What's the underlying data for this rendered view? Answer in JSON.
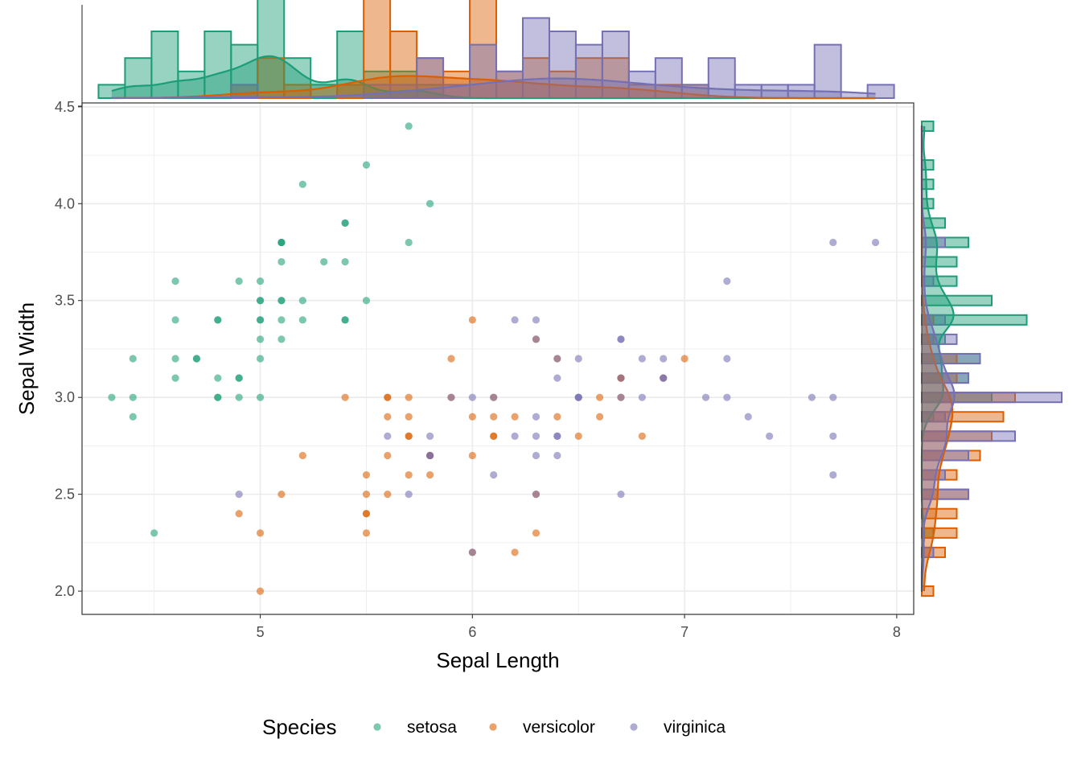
{
  "chart_data": {
    "type": "scatter",
    "xlabel": "Sepal Length",
    "ylabel": "Sepal Width",
    "xlim": [
      4.16,
      8.08
    ],
    "ylim": [
      1.88,
      4.52
    ],
    "x_ticks": [
      5,
      6,
      7,
      8
    ],
    "y_ticks": [
      2.0,
      2.5,
      3.0,
      3.5,
      4.0,
      4.5
    ],
    "x_tick_labels": [
      "5",
      "6",
      "7",
      "8"
    ],
    "y_tick_labels": [
      "2.0",
      "2.5",
      "3.0",
      "3.5",
      "4.0",
      "4.5"
    ],
    "grid": true,
    "marginals": "histogram with density curve on top (Sepal Length) and right (Sepal Width)",
    "legend": {
      "title": "Species",
      "position": "bottom",
      "entries": [
        "setosa",
        "versicolor",
        "virginica"
      ]
    },
    "colors": {
      "setosa": "#1b9e77",
      "versicolor": "#d95f02",
      "virginica": "#7570b3"
    },
    "series": [
      {
        "name": "setosa",
        "x": [
          5.1,
          4.9,
          4.7,
          4.6,
          5.0,
          5.4,
          4.6,
          5.0,
          4.4,
          4.9,
          5.4,
          4.8,
          4.8,
          4.3,
          5.8,
          5.7,
          5.4,
          5.1,
          5.7,
          5.1,
          5.4,
          5.1,
          4.6,
          5.1,
          4.8,
          5.0,
          5.0,
          5.2,
          5.2,
          4.7,
          4.8,
          5.4,
          5.2,
          5.5,
          4.9,
          5.0,
          5.5,
          4.9,
          4.4,
          5.1,
          5.0,
          4.5,
          4.4,
          5.0,
          5.1,
          4.8,
          5.1,
          4.6,
          5.3,
          5.0
        ],
        "y": [
          3.5,
          3.0,
          3.2,
          3.1,
          3.6,
          3.9,
          3.4,
          3.4,
          2.9,
          3.1,
          3.7,
          3.4,
          3.0,
          3.0,
          4.0,
          4.4,
          3.9,
          3.5,
          3.8,
          3.8,
          3.4,
          3.7,
          3.6,
          3.3,
          3.4,
          3.0,
          3.4,
          3.5,
          3.4,
          3.2,
          3.1,
          3.4,
          4.1,
          4.2,
          3.1,
          3.2,
          3.5,
          3.6,
          3.0,
          3.4,
          3.5,
          2.3,
          3.2,
          3.5,
          3.8,
          3.0,
          3.8,
          3.2,
          3.7,
          3.3
        ]
      },
      {
        "name": "versicolor",
        "x": [
          7.0,
          6.4,
          6.9,
          5.5,
          6.5,
          5.7,
          6.3,
          4.9,
          6.6,
          5.2,
          5.0,
          5.9,
          6.0,
          6.1,
          5.6,
          6.7,
          5.6,
          5.8,
          6.2,
          5.6,
          5.9,
          6.1,
          6.3,
          6.1,
          6.4,
          6.6,
          6.8,
          6.7,
          6.0,
          5.7,
          5.5,
          5.5,
          5.8,
          6.0,
          5.4,
          6.0,
          6.7,
          6.3,
          5.6,
          5.5,
          5.5,
          6.1,
          5.8,
          5.0,
          5.6,
          5.7,
          5.7,
          6.2,
          5.1,
          5.7
        ],
        "y": [
          3.2,
          3.2,
          3.1,
          2.3,
          2.8,
          2.8,
          3.3,
          2.4,
          2.9,
          2.7,
          2.0,
          3.0,
          2.2,
          2.9,
          2.9,
          3.1,
          3.0,
          2.7,
          2.2,
          2.5,
          3.2,
          2.8,
          2.5,
          2.8,
          2.9,
          3.0,
          2.8,
          3.0,
          2.9,
          2.6,
          2.4,
          2.4,
          2.7,
          2.7,
          3.0,
          3.4,
          3.1,
          2.3,
          3.0,
          2.5,
          2.6,
          3.0,
          2.6,
          2.3,
          2.7,
          3.0,
          2.9,
          2.9,
          2.5,
          2.8
        ]
      },
      {
        "name": "virginica",
        "x": [
          6.3,
          5.8,
          7.1,
          6.3,
          6.5,
          7.6,
          4.9,
          7.3,
          6.7,
          7.2,
          6.5,
          6.4,
          6.8,
          5.7,
          5.8,
          6.4,
          6.5,
          7.7,
          7.7,
          6.0,
          6.9,
          5.6,
          7.7,
          6.3,
          6.7,
          7.2,
          6.2,
          6.1,
          6.4,
          7.2,
          7.4,
          7.9,
          6.4,
          6.3,
          6.1,
          7.7,
          6.3,
          6.4,
          6.0,
          6.9,
          6.7,
          6.9,
          5.8,
          6.8,
          6.7,
          6.7,
          6.3,
          6.5,
          6.2,
          5.9
        ],
        "y": [
          3.3,
          2.7,
          3.0,
          2.9,
          3.0,
          3.0,
          2.5,
          2.9,
          2.5,
          3.6,
          3.2,
          2.7,
          3.0,
          2.5,
          2.8,
          3.2,
          3.0,
          3.8,
          2.6,
          2.2,
          3.2,
          2.8,
          2.8,
          2.7,
          3.3,
          3.2,
          2.8,
          3.0,
          2.8,
          3.0,
          2.8,
          3.8,
          2.8,
          2.8,
          2.6,
          3.0,
          3.4,
          3.1,
          3.0,
          3.1,
          3.1,
          3.1,
          2.7,
          3.2,
          3.3,
          3.0,
          2.5,
          3.0,
          3.4,
          3.0
        ]
      }
    ]
  }
}
